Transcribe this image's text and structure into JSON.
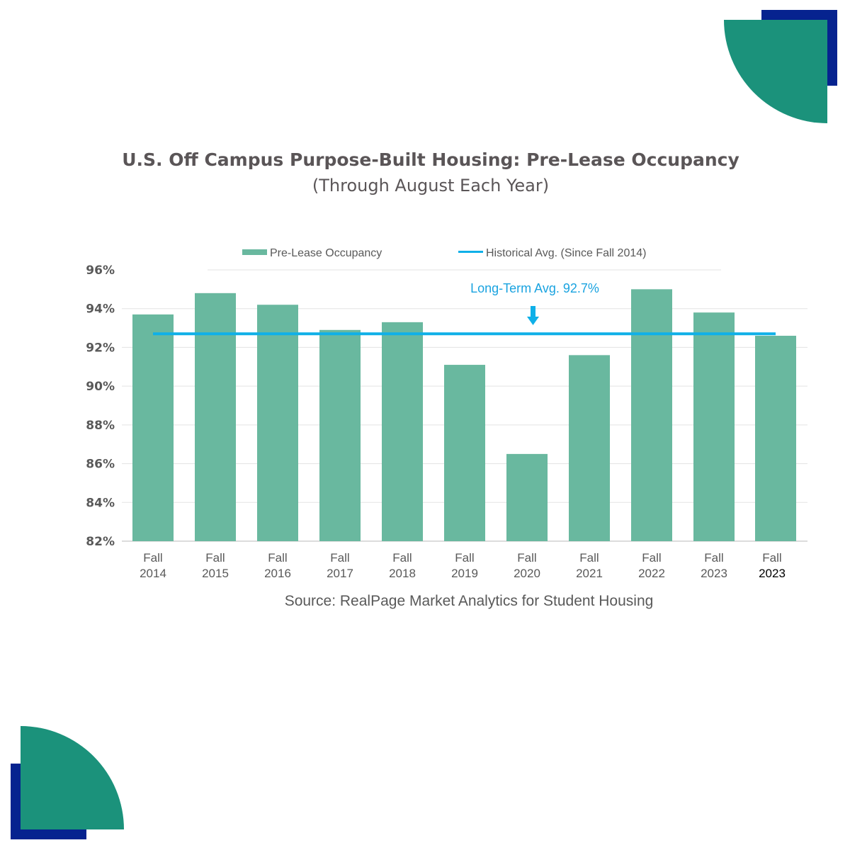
{
  "colors": {
    "bar": "#69b89f",
    "avg_line": "#0fb0e8",
    "teal_shape": "#1b927b",
    "navy_shape": "#06238f"
  },
  "chart_data": {
    "type": "bar",
    "title": "U.S. Off Campus Purpose-Built Housing: Pre-Lease Occupancy",
    "subtitle": "(Through August Each Year)",
    "categories": [
      [
        "Fall",
        "2014"
      ],
      [
        "Fall",
        "2015"
      ],
      [
        "Fall",
        "2016"
      ],
      [
        "Fall",
        "2017"
      ],
      [
        "Fall",
        "2018"
      ],
      [
        "Fall",
        "2019"
      ],
      [
        "Fall",
        "2020"
      ],
      [
        "Fall",
        "2021"
      ],
      [
        "Fall",
        "2022"
      ],
      [
        "Fall",
        "2023"
      ],
      [
        "Fall",
        "2023"
      ]
    ],
    "series": [
      {
        "name": "Pre-Lease Occupancy",
        "type": "bar",
        "values": [
          93.7,
          94.8,
          94.2,
          92.9,
          93.3,
          91.1,
          86.5,
          91.6,
          95.0,
          93.8,
          92.6
        ]
      },
      {
        "name": "Historical Avg. (Since Fall 2014)",
        "type": "line",
        "value": 92.7
      }
    ],
    "annotation": "Long-Term Avg. 92.7%",
    "ylim": [
      82,
      96
    ],
    "yticks": [
      "82%",
      "84%",
      "86%",
      "88%",
      "90%",
      "92%",
      "94%",
      "96%"
    ],
    "ytick_values": [
      82,
      84,
      86,
      88,
      90,
      92,
      94,
      96
    ],
    "grid": true,
    "legend_position": "top",
    "source": "Source: RealPage Market Analytics for Student Housing"
  }
}
